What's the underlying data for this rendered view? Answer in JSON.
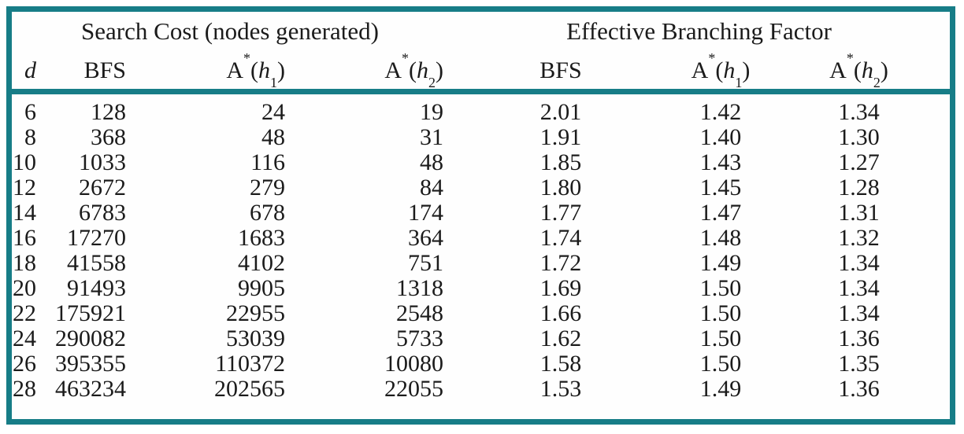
{
  "figure": {
    "border_color": "#177d87",
    "text_color": "#1b1b1b",
    "background": "#ffffff"
  },
  "table": {
    "group_headers": {
      "search_cost": "Search Cost (nodes generated)",
      "ebf": "Effective Branching Factor"
    },
    "columns": {
      "d": {
        "label": "d"
      },
      "bfs_sc": {
        "label": "BFS"
      },
      "h1_sc": {
        "base": "A",
        "sup": "*",
        "open": "(",
        "var": "h",
        "sub": "1",
        "close": ")"
      },
      "h2_sc": {
        "base": "A",
        "sup": "*",
        "open": "(",
        "var": "h",
        "sub": "2",
        "close": ")"
      },
      "bfs_ebf": {
        "label": "BFS"
      },
      "h1_ebf": {
        "base": "A",
        "sup": "*",
        "open": "(",
        "var": "h",
        "sub": "1",
        "close": ")"
      },
      "h2_ebf": {
        "base": "A",
        "sup": "*",
        "open": "(",
        "var": "h",
        "sub": "2",
        "close": ")"
      }
    },
    "col_ids": [
      "d",
      "bfs-search-cost",
      "astar-h1-search-cost",
      "astar-h2-search-cost",
      "bfs-ebf",
      "astar-h1-ebf",
      "astar-h2-ebf"
    ],
    "rows": [
      [
        "6",
        "128",
        "24",
        "19",
        "2.01",
        "1.42",
        "1.34"
      ],
      [
        "8",
        "368",
        "48",
        "31",
        "1.91",
        "1.40",
        "1.30"
      ],
      [
        "10",
        "1033",
        "116",
        "48",
        "1.85",
        "1.43",
        "1.27"
      ],
      [
        "12",
        "2672",
        "279",
        "84",
        "1.80",
        "1.45",
        "1.28"
      ],
      [
        "14",
        "6783",
        "678",
        "174",
        "1.77",
        "1.47",
        "1.31"
      ],
      [
        "16",
        "17270",
        "1683",
        "364",
        "1.74",
        "1.48",
        "1.32"
      ],
      [
        "18",
        "41558",
        "4102",
        "751",
        "1.72",
        "1.49",
        "1.34"
      ],
      [
        "20",
        "91493",
        "9905",
        "1318",
        "1.69",
        "1.50",
        "1.34"
      ],
      [
        "22",
        "175921",
        "22955",
        "2548",
        "1.66",
        "1.50",
        "1.34"
      ],
      [
        "24",
        "290082",
        "53039",
        "5733",
        "1.62",
        "1.50",
        "1.36"
      ],
      [
        "26",
        "395355",
        "110372",
        "10080",
        "1.58",
        "1.50",
        "1.35"
      ],
      [
        "28",
        "463234",
        "202565",
        "22055",
        "1.53",
        "1.49",
        "1.36"
      ]
    ]
  },
  "chart_data": {
    "type": "table",
    "title": "",
    "column_groups": [
      "Search Cost (nodes generated)",
      "Effective Branching Factor"
    ],
    "columns": [
      "d",
      "BFS",
      "A*(h1)",
      "A*(h2)",
      "BFS",
      "A*(h1)",
      "A*(h2)"
    ],
    "d": [
      6,
      8,
      10,
      12,
      14,
      16,
      18,
      20,
      22,
      24,
      26,
      28
    ],
    "search_cost": {
      "BFS": [
        128,
        368,
        1033,
        2672,
        6783,
        17270,
        41558,
        91493,
        175921,
        290082,
        395355,
        463234
      ],
      "A*(h1)": [
        24,
        48,
        116,
        279,
        678,
        1683,
        4102,
        9905,
        22955,
        53039,
        110372,
        202565
      ],
      "A*(h2)": [
        19,
        31,
        48,
        84,
        174,
        364,
        751,
        1318,
        2548,
        5733,
        10080,
        22055
      ]
    },
    "effective_branching_factor": {
      "BFS": [
        2.01,
        1.91,
        1.85,
        1.8,
        1.77,
        1.74,
        1.72,
        1.69,
        1.66,
        1.62,
        1.58,
        1.53
      ],
      "A*(h1)": [
        1.42,
        1.4,
        1.43,
        1.45,
        1.47,
        1.48,
        1.49,
        1.5,
        1.5,
        1.5,
        1.5,
        1.49
      ],
      "A*(h2)": [
        1.34,
        1.3,
        1.27,
        1.28,
        1.31,
        1.32,
        1.34,
        1.34,
        1.34,
        1.36,
        1.35,
        1.36
      ]
    }
  }
}
